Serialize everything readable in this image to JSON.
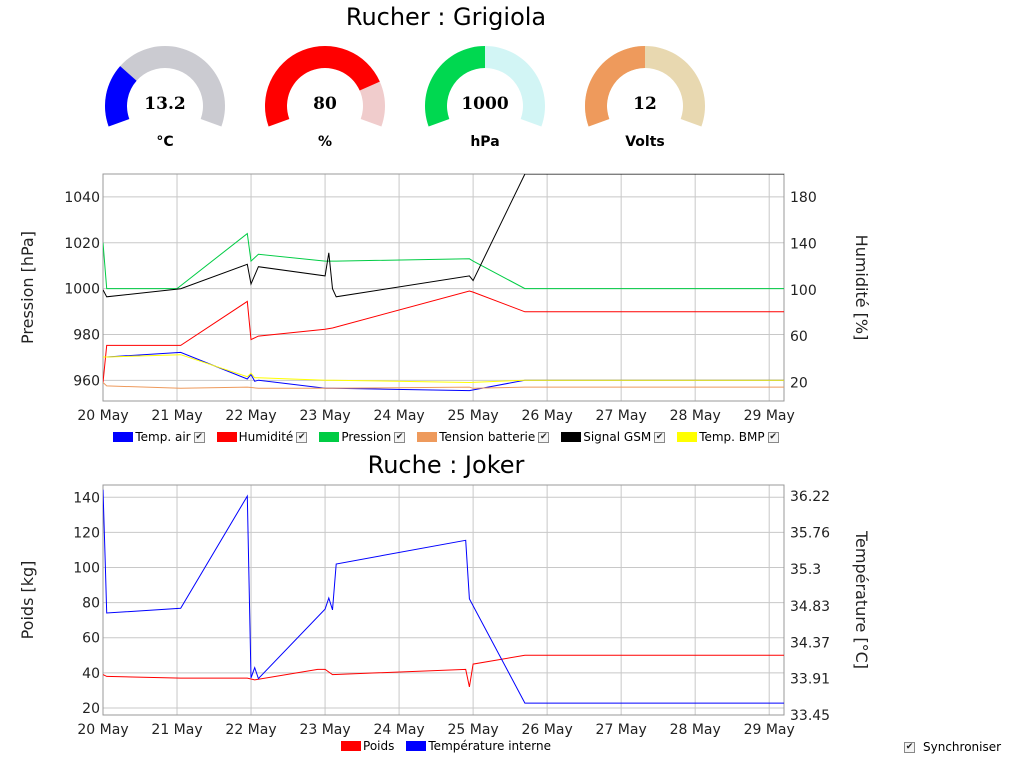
{
  "top_title": "Rucher : Grigiola",
  "gauges": [
    {
      "value": "13.2",
      "unit": "°C",
      "fraction": 0.28,
      "fill": "#0000ff",
      "track": "#cbcbd1"
    },
    {
      "value": "80",
      "unit": "%",
      "fraction": 0.8,
      "fill": "#ff0000",
      "track": "#f0cccc"
    },
    {
      "value": "1000",
      "unit": "hPa",
      "fraction": 0.5,
      "fill": "#00d850",
      "track": "#d2f5f5"
    },
    {
      "value": "12",
      "unit": "Volts",
      "fraction": 0.5,
      "fill": "#ee9a5c",
      "track": "#e8d8b0"
    }
  ],
  "legend1": [
    {
      "label": "Temp. air",
      "color": "#0000ff"
    },
    {
      "label": "Humidité",
      "color": "#ff0000"
    },
    {
      "label": "Pression",
      "color": "#00cc44"
    },
    {
      "label": "Tension batterie",
      "color": "#ee9a5c"
    },
    {
      "label": "Signal GSM",
      "color": "#000000"
    },
    {
      "label": "Temp. BMP",
      "color": "#ffff00"
    }
  ],
  "second_title": "Ruche : Joker",
  "legend2": [
    {
      "label": "Poids",
      "color": "#ff0000"
    },
    {
      "label": "Température interne",
      "color": "#0000ff"
    }
  ],
  "sync_label": "Synchroniser",
  "check_mark": "✔",
  "chart_data": [
    {
      "type": "line",
      "xticks": [
        "20 May",
        "21 May",
        "22 May",
        "23 May",
        "24 May",
        "25 May",
        "26 May",
        "27 May",
        "28 May",
        "29 May"
      ],
      "xlim": [
        0,
        9.2
      ],
      "ylabel": "Pression [hPa]",
      "ylim": [
        951,
        1050
      ],
      "yticks": [
        960,
        980,
        1000,
        1020,
        1040
      ],
      "y2label": "Humidité [%]",
      "y2lim": [
        4,
        200
      ],
      "y2ticks": [
        20,
        60,
        100,
        140,
        180
      ],
      "grid": true,
      "series": [
        {
          "name": "Pression",
          "axis": "left",
          "color": "#00cc44",
          "x": [
            0,
            0.05,
            1.0,
            1.95,
            2.0,
            2.1,
            3.0,
            3.15,
            4.95,
            5.0,
            5.7,
            9.2
          ],
          "y": [
            1020,
            1000,
            1000,
            1024,
            1012,
            1015,
            1012,
            1012,
            1013,
            1012,
            1000,
            1000
          ]
        },
        {
          "name": "Humidité",
          "axis": "right",
          "color": "#ff0000",
          "x": [
            0,
            0.05,
            1.05,
            1.95,
            2.0,
            2.1,
            3.0,
            3.1,
            4.95,
            5.0,
            5.7,
            9.2
          ],
          "y": [
            20,
            52,
            52,
            90,
            57,
            60,
            66,
            67,
            99,
            98,
            81,
            81
          ]
        },
        {
          "name": "Signal GSM",
          "axis": "right",
          "color": "#000000",
          "x": [
            0,
            0.05,
            1.05,
            1.95,
            2.0,
            2.1,
            3.0,
            3.05,
            3.1,
            3.15,
            4.95,
            5.0,
            5.7,
            9.2
          ],
          "y": [
            100,
            94,
            101,
            122,
            105,
            120,
            112,
            132,
            101,
            94,
            112,
            108,
            200,
            200
          ]
        },
        {
          "name": "Temp. air",
          "axis": "right",
          "color": "#0000ff",
          "x": [
            0,
            0.05,
            1.05,
            1.95,
            2.0,
            2.05,
            2.1,
            3.0,
            3.1,
            4.95,
            5.7,
            9.2
          ],
          "y": [
            42,
            42,
            46,
            23,
            27,
            21,
            22,
            15,
            15,
            13,
            22,
            22
          ]
        },
        {
          "name": "Temp. BMP",
          "axis": "right",
          "color": "#ffff00",
          "x": [
            0,
            0.05,
            1.05,
            1.95,
            2.0,
            2.05,
            2.1,
            3.0,
            3.1,
            4.95,
            5.7,
            9.2
          ],
          "y": [
            42,
            42,
            44,
            25,
            28,
            24,
            24,
            22,
            22,
            20,
            22,
            22
          ]
        },
        {
          "name": "Tension batterie",
          "axis": "right",
          "color": "#ee9a5c",
          "x": [
            0,
            0.05,
            1.05,
            1.95,
            2.1,
            3.0,
            4.95,
            5.0,
            5.7,
            9.2
          ],
          "y": [
            20,
            17,
            15,
            16,
            15,
            15,
            16,
            15,
            16,
            16
          ]
        }
      ]
    },
    {
      "type": "line",
      "xticks": [
        "20 May",
        "21 May",
        "22 May",
        "23 May",
        "24 May",
        "25 May",
        "26 May",
        "27 May",
        "28 May",
        "29 May"
      ],
      "xlim": [
        0,
        9.2
      ],
      "ylabel": "Poids [kg]",
      "ylim": [
        16,
        147
      ],
      "yticks": [
        20,
        40,
        60,
        80,
        100,
        120,
        140
      ],
      "y2label": "Température [°C]",
      "y2lim": [
        33.45,
        36.36
      ],
      "y2ticks": [
        "33.45",
        "33.91",
        "34.37",
        "34.83",
        "35.3",
        "35.76",
        "36.22"
      ],
      "grid": true,
      "series": [
        {
          "name": "Poids",
          "axis": "left",
          "color": "#ff0000",
          "x": [
            0,
            0.05,
            1.05,
            1.95,
            2.05,
            2.9,
            3.0,
            3.1,
            4.9,
            4.95,
            5.0,
            5.7,
            9.2
          ],
          "y": [
            39,
            38,
            37,
            37,
            36,
            42,
            42,
            39,
            42,
            32,
            45,
            50,
            50
          ]
        },
        {
          "name": "Température interne",
          "axis": "right",
          "color": "#0000ff",
          "x": [
            0,
            0.03,
            0.05,
            1.05,
            1.95,
            2.0,
            2.05,
            2.1,
            3.0,
            3.05,
            3.1,
            3.15,
            4.9,
            4.95,
            5.7,
            9.2
          ],
          "y": [
            36.3,
            35.4,
            34.74,
            34.8,
            36.22,
            33.92,
            34.05,
            33.91,
            34.79,
            34.93,
            34.78,
            35.36,
            35.66,
            34.92,
            33.6,
            33.6
          ]
        }
      ]
    }
  ]
}
